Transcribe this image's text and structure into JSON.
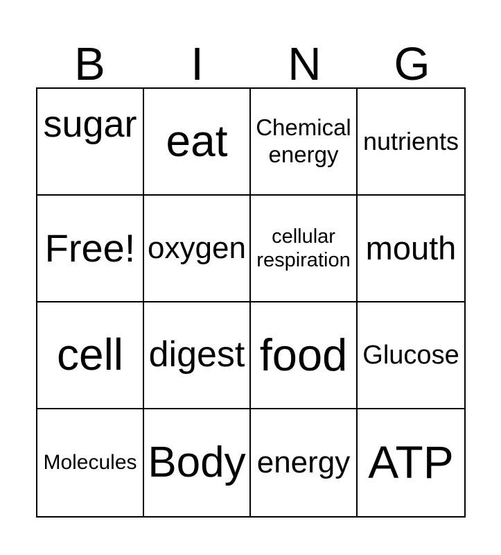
{
  "card": {
    "header": {
      "letters": [
        "B",
        "I",
        "N",
        "G"
      ]
    },
    "grid": {
      "columns": 4,
      "rows": 4,
      "cells": [
        [
          {
            "text": "sugar",
            "size": 54,
            "valign": "high"
          },
          {
            "text": "eat",
            "size": 64
          },
          {
            "text": "Chemical energy",
            "size": 33
          },
          {
            "text": "nutrients",
            "size": 36
          }
        ],
        [
          {
            "text": "Free!",
            "size": 56,
            "free": true
          },
          {
            "text": "oxygen",
            "size": 44
          },
          {
            "text": "cellular respiration",
            "size": 29
          },
          {
            "text": "mouth",
            "size": 47
          }
        ],
        [
          {
            "text": "cell",
            "size": 64
          },
          {
            "text": "digest",
            "size": 52
          },
          {
            "text": "food",
            "size": 65
          },
          {
            "text": "Glucose",
            "size": 38
          }
        ],
        [
          {
            "text": "Molecules",
            "size": 30
          },
          {
            "text": "Body",
            "size": 62
          },
          {
            "text": "energy",
            "size": 44
          },
          {
            "text": "ATP",
            "size": 66
          }
        ]
      ]
    },
    "colors": {
      "border": "#000000",
      "text": "#000000",
      "background": "#ffffff"
    }
  }
}
